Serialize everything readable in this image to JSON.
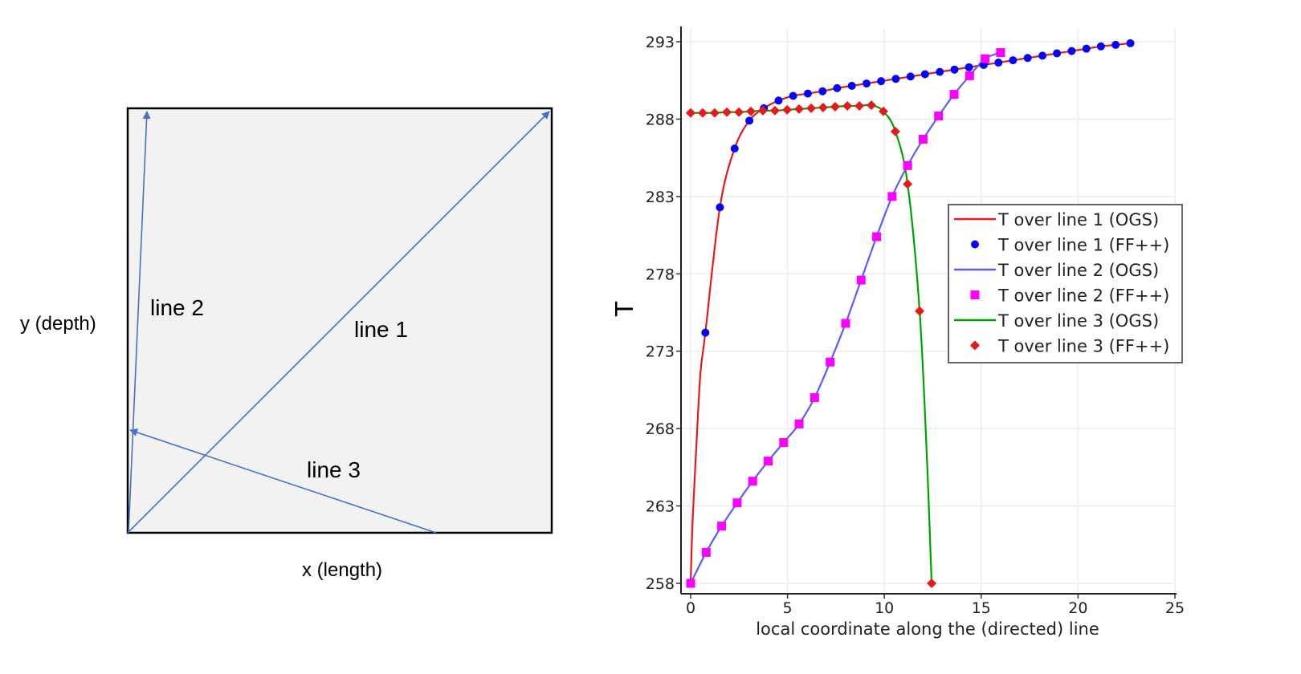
{
  "diagram": {
    "labels": {
      "line1": "line 1",
      "line2": "line 2",
      "line3": "line 3",
      "y_axis": "y (depth)",
      "x_axis": "x (length)"
    },
    "colors": {
      "line": "#4472c4",
      "box_fill": "#f2f2f2"
    }
  },
  "chart_data": {
    "type": "line",
    "title": "",
    "xlabel": "local coordinate along the (directed) line",
    "ylabel": "T",
    "xlim": [
      0,
      25
    ],
    "ylim": [
      258,
      293
    ],
    "xticks": [
      0,
      5,
      10,
      15,
      20,
      25
    ],
    "yticks": [
      258,
      263,
      268,
      273,
      278,
      283,
      288,
      293
    ],
    "grid": true,
    "legend_position": "right",
    "series": [
      {
        "name": "T over line 1 (OGS)",
        "kind": "line",
        "color": "#e41a1c",
        "x": [
          0,
          0.1,
          0.3,
          0.5,
          0.76,
          1.51,
          2.27,
          3.03,
          3.78,
          4.54,
          5.29,
          6.05,
          6.81,
          7.56,
          8.32,
          9.08,
          9.83,
          10.59,
          11.35,
          12.1,
          12.86,
          13.62,
          14.37,
          15.13,
          15.89,
          16.64,
          17.4,
          18.16,
          18.91,
          19.67,
          20.43,
          21.18,
          21.94,
          22.7
        ],
        "y": [
          258,
          262,
          267,
          271.5,
          274.2,
          282.3,
          286.1,
          287.9,
          288.7,
          289.2,
          289.5,
          289.65,
          289.8,
          290.0,
          290.15,
          290.3,
          290.45,
          290.6,
          290.75,
          290.9,
          291.05,
          291.2,
          291.35,
          291.5,
          291.65,
          291.8,
          291.95,
          292.1,
          292.25,
          292.4,
          292.55,
          292.7,
          292.8,
          292.9
        ]
      },
      {
        "name": "T over line 1 (FF++)",
        "kind": "circle",
        "color": "#0000ff",
        "x": [
          0.76,
          1.51,
          2.27,
          3.03,
          3.78,
          4.54,
          5.29,
          6.05,
          6.81,
          7.56,
          8.32,
          9.08,
          9.83,
          10.59,
          11.35,
          12.1,
          12.86,
          13.62,
          14.37,
          15.13,
          15.89,
          16.64,
          17.4,
          18.16,
          18.91,
          19.67,
          20.43,
          21.18,
          21.94,
          22.7
        ],
        "y": [
          274.2,
          282.3,
          286.1,
          287.9,
          288.7,
          289.2,
          289.5,
          289.65,
          289.8,
          290.0,
          290.15,
          290.3,
          290.45,
          290.6,
          290.75,
          290.9,
          291.05,
          291.2,
          291.35,
          291.5,
          291.65,
          291.8,
          291.95,
          292.1,
          292.25,
          292.4,
          292.55,
          292.7,
          292.8,
          292.9
        ]
      },
      {
        "name": "T over line 2 (OGS)",
        "kind": "line",
        "color": "#5a5aff",
        "x": [
          0,
          0.8,
          1.6,
          2.4,
          3.2,
          4.0,
          4.8,
          5.6,
          6.4,
          7.2,
          8.0,
          8.8,
          9.6,
          10.4,
          11.2,
          12.0,
          12.8,
          13.6,
          14.4,
          15.2,
          16.0
        ],
        "y": [
          258,
          260.0,
          261.7,
          263.2,
          264.6,
          265.9,
          267.1,
          268.3,
          270.0,
          272.3,
          274.8,
          277.6,
          280.4,
          283.0,
          285.0,
          286.7,
          288.2,
          289.6,
          290.8,
          291.9,
          292.3
        ]
      },
      {
        "name": "T over line 2 (FF++)",
        "kind": "square",
        "color": "#ff00ff",
        "x": [
          0,
          0.8,
          1.6,
          2.4,
          3.2,
          4.0,
          4.8,
          5.6,
          6.4,
          7.2,
          8.0,
          8.8,
          9.6,
          10.4,
          11.2,
          12.0,
          12.8,
          13.6,
          14.4,
          15.2,
          16.0
        ],
        "y": [
          258,
          260.0,
          261.7,
          263.2,
          264.6,
          265.9,
          267.1,
          268.3,
          270.0,
          272.3,
          274.8,
          277.6,
          280.4,
          283.0,
          285.0,
          286.7,
          288.2,
          289.6,
          290.8,
          291.9,
          292.3
        ]
      },
      {
        "name": "T over line 3 (OGS)",
        "kind": "line",
        "color": "#00a000",
        "x": [
          0,
          0.62,
          1.24,
          1.87,
          2.49,
          3.11,
          3.73,
          4.35,
          4.98,
          5.6,
          6.22,
          6.84,
          7.46,
          8.09,
          8.71,
          9.33,
          9.95,
          10.57,
          11.2,
          11.82,
          12.2,
          12.44
        ],
        "y": [
          288.4,
          288.4,
          288.4,
          288.45,
          288.45,
          288.5,
          288.55,
          288.55,
          288.6,
          288.65,
          288.7,
          288.75,
          288.8,
          288.85,
          288.85,
          288.9,
          288.5,
          287.2,
          283.8,
          275.6,
          266,
          258
        ]
      },
      {
        "name": "T over line 3 (FF++)",
        "kind": "diamond",
        "color": "#e41a1c",
        "x": [
          0,
          0.62,
          1.24,
          1.87,
          2.49,
          3.11,
          3.73,
          4.35,
          4.98,
          5.6,
          6.22,
          6.84,
          7.46,
          8.09,
          8.71,
          9.33,
          9.95,
          10.57,
          11.2,
          11.82,
          12.44
        ],
        "y": [
          288.4,
          288.4,
          288.4,
          288.45,
          288.45,
          288.5,
          288.55,
          288.55,
          288.6,
          288.65,
          288.7,
          288.75,
          288.8,
          288.85,
          288.85,
          288.9,
          288.5,
          287.2,
          283.8,
          275.6,
          258
        ]
      }
    ]
  }
}
